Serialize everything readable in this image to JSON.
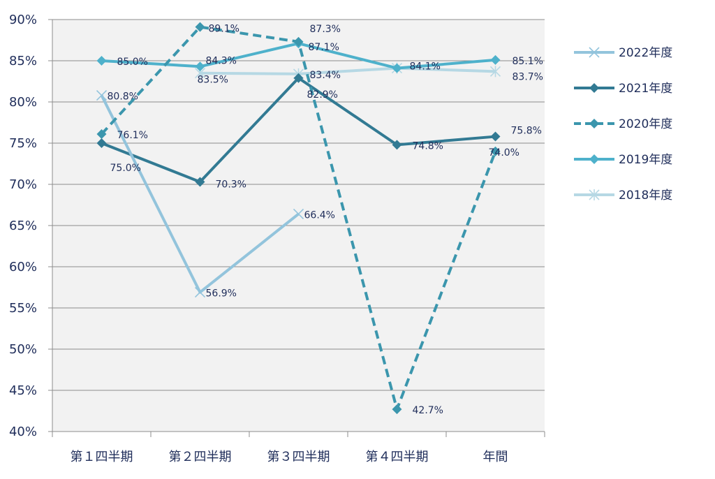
{
  "chart_data": {
    "type": "line",
    "categories": [
      "第１四半期",
      "第２四半期",
      "第３四半期",
      "第４四半期",
      "年間"
    ],
    "y_tick_labels": [
      "90%",
      "85%",
      "80%",
      "75%",
      "70%",
      "65%",
      "60%",
      "55%",
      "50%",
      "45%",
      "40%"
    ],
    "ylim": [
      40,
      90
    ],
    "y_unit": "%",
    "grid": true,
    "legend_position": "right",
    "series": [
      {
        "name": "2022年度",
        "values": [
          80.8,
          56.9,
          66.4,
          null,
          null
        ],
        "labels": [
          "80.8%",
          "56.9%",
          "66.4%",
          "",
          ""
        ],
        "color": "#93c4dc",
        "style": "solid",
        "marker": "x"
      },
      {
        "name": "2021年度",
        "values": [
          75.0,
          70.3,
          82.9,
          74.8,
          75.8
        ],
        "labels": [
          "75.0%",
          "70.3%",
          "82.9%",
          "74.8%",
          "75.8%"
        ],
        "color": "#327a93",
        "style": "solid",
        "marker": "diamond"
      },
      {
        "name": "2020年度",
        "values": [
          76.1,
          89.1,
          87.3,
          42.7,
          74.0
        ],
        "labels": [
          "76.1%",
          "89.1%",
          "87.3%",
          "42.7%",
          "74.0%"
        ],
        "color": "#3b96ad",
        "style": "dashed",
        "marker": "diamond"
      },
      {
        "name": "2019年度",
        "values": [
          85.0,
          84.3,
          87.1,
          84.1,
          85.1
        ],
        "labels": [
          "85.0%",
          "84.3%",
          "87.1%",
          "84.1%",
          "85.1%"
        ],
        "color": "#4eb1cb",
        "style": "solid",
        "marker": "diamond"
      },
      {
        "name": "2018年度",
        "values": [
          null,
          83.5,
          83.4,
          84.1,
          83.7
        ],
        "labels": [
          "",
          "83.5%",
          "83.4%",
          "",
          "83.7%"
        ],
        "color": "#b6d8e4",
        "style": "solid",
        "marker": "star"
      }
    ]
  }
}
